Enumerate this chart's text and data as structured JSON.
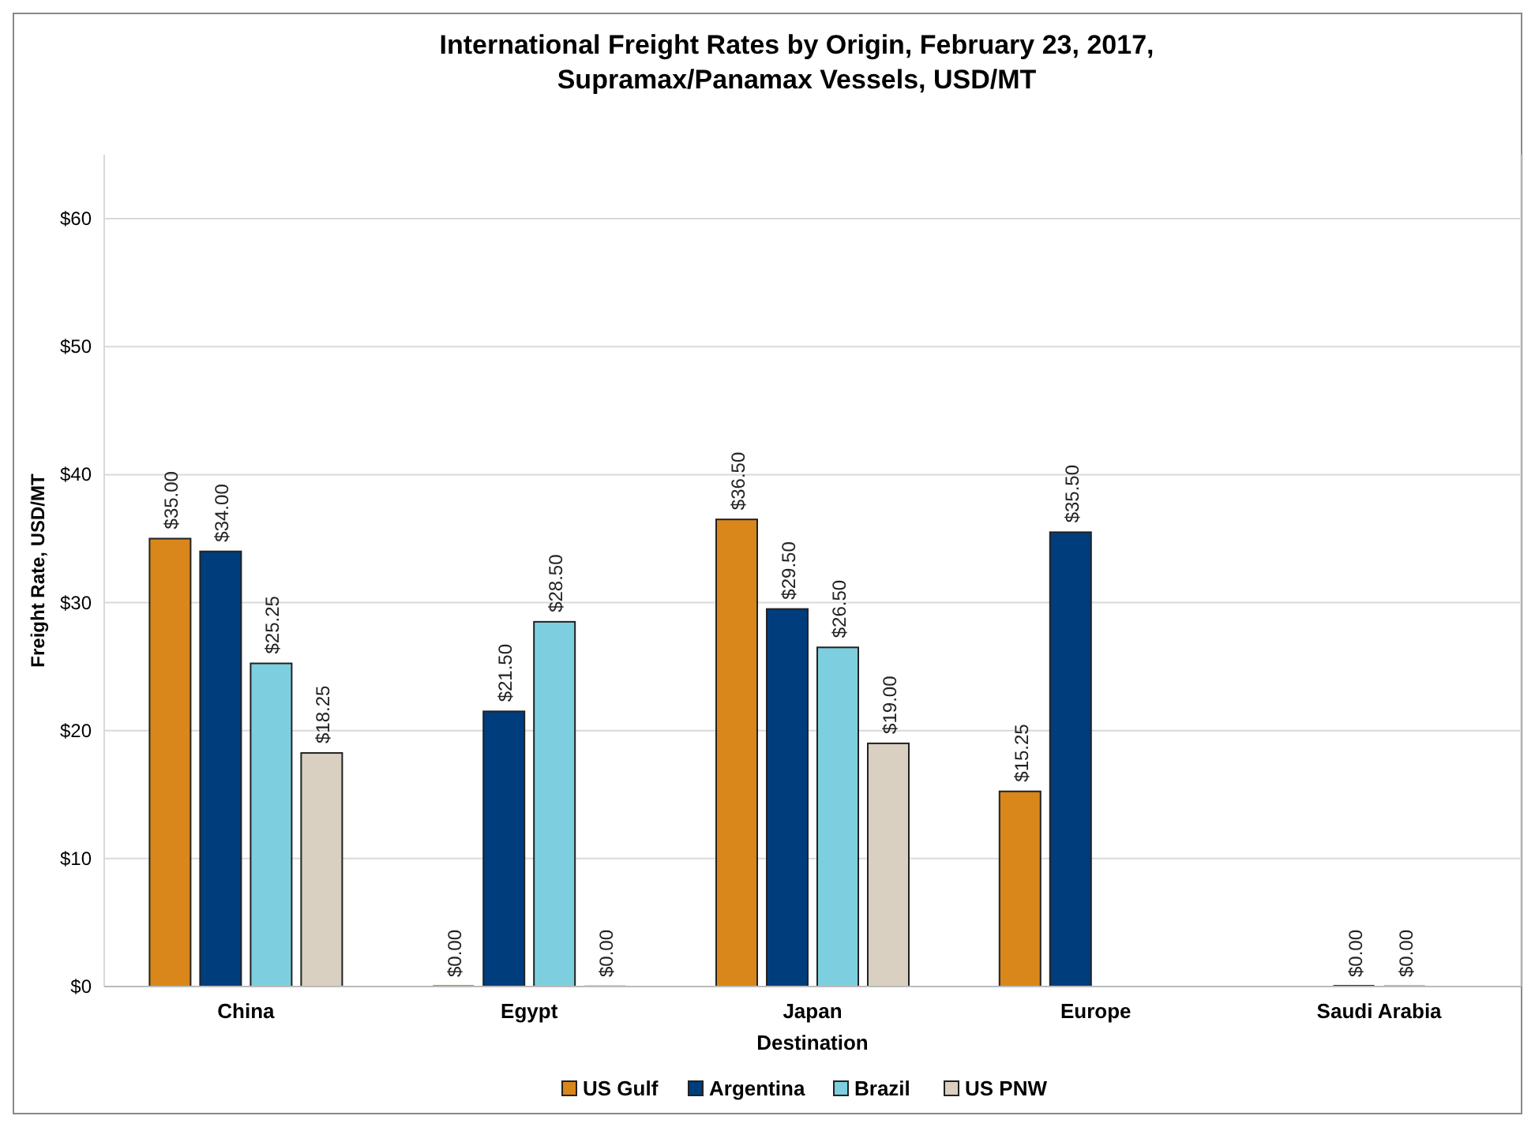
{
  "chart_data": {
    "type": "bar",
    "title": "International Freight Rates by Origin, February 23, 2017,\nSupramax/Panamax Vessels, USD/MT",
    "xlabel": "Destination",
    "ylabel": "Freight Rate, USD/MT",
    "categories": [
      "China",
      "Egypt",
      "Japan",
      "Europe",
      "Saudi Arabia"
    ],
    "series": [
      {
        "name": "US Gulf",
        "color": "#d9861a",
        "values": [
          35,
          0,
          36.5,
          15.25,
          null
        ],
        "value_labels": [
          "$35.00",
          "$0.00",
          "$36.50",
          "$15.25",
          null
        ]
      },
      {
        "name": "Argentina",
        "color": "#003d7d",
        "values": [
          34,
          21.5,
          29.5,
          35.5,
          0
        ],
        "value_labels": [
          "$34.00",
          "$21.50",
          "$29.50",
          "$35.50",
          "$0.00"
        ]
      },
      {
        "name": "Brazil",
        "color": "#7dcfdf",
        "values": [
          25.25,
          28.5,
          26.5,
          null,
          0
        ],
        "value_labels": [
          "$25.25",
          "$28.50",
          "$26.50",
          null,
          "$0.00"
        ]
      },
      {
        "name": "US PNW",
        "color": "#d9d0c1",
        "values": [
          18.25,
          0,
          19,
          null,
          null
        ],
        "value_labels": [
          "$18.25",
          "$0.00",
          "$19.00",
          null,
          null
        ]
      }
    ],
    "ylim": [
      0,
      65
    ],
    "yticks": [
      {
        "value": 0,
        "label": "$0"
      },
      {
        "value": 10,
        "label": "$10"
      },
      {
        "value": 20,
        "label": "$20"
      },
      {
        "value": 30,
        "label": "$30"
      },
      {
        "value": 40,
        "label": "$40"
      },
      {
        "value": 50,
        "label": "$50"
      },
      {
        "value": 60,
        "label": "$60"
      }
    ],
    "grid": "y",
    "legend": "bottom"
  }
}
